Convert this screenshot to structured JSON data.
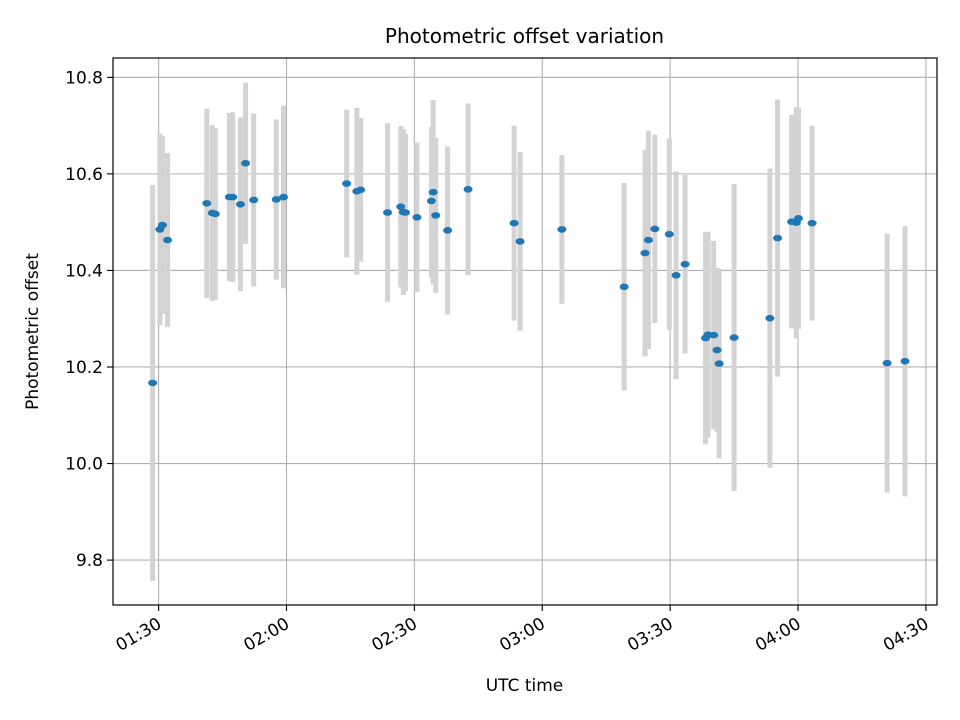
{
  "chart_data": {
    "type": "scatter",
    "title": "Photometric offset variation",
    "xlabel": "UTC time",
    "ylabel": "Photometric offset",
    "x_unit": "minutes",
    "x_ticks": [
      "01:30",
      "02:00",
      "02:30",
      "03:00",
      "03:30",
      "04:00",
      "04:30"
    ],
    "x_tick_values": [
      90,
      120,
      150,
      180,
      210,
      240,
      270
    ],
    "y_ticks": [
      9.8,
      10.0,
      10.2,
      10.4,
      10.6,
      10.8
    ],
    "xlim": [
      79.3,
      272.6
    ],
    "ylim": [
      9.707,
      10.84
    ],
    "grid": true,
    "point_color": "#1f77b4",
    "errorbar_color": "#d3d3d3",
    "points": [
      {
        "x": 88.6,
        "y": 10.167,
        "lo": 9.757,
        "hi": 10.577
      },
      {
        "x": 90.3,
        "y": 10.485,
        "lo": 10.287,
        "hi": 10.683
      },
      {
        "x": 90.9,
        "y": 10.494,
        "lo": 10.31,
        "hi": 10.678
      },
      {
        "x": 92.1,
        "y": 10.463,
        "lo": 10.283,
        "hi": 10.643
      },
      {
        "x": 101.3,
        "y": 10.539,
        "lo": 10.343,
        "hi": 10.735
      },
      {
        "x": 102.6,
        "y": 10.519,
        "lo": 10.337,
        "hi": 10.701
      },
      {
        "x": 103.3,
        "y": 10.517,
        "lo": 10.339,
        "hi": 10.695
      },
      {
        "x": 106.6,
        "y": 10.552,
        "lo": 10.378,
        "hi": 10.726
      },
      {
        "x": 107.4,
        "y": 10.552,
        "lo": 10.376,
        "hi": 10.728
      },
      {
        "x": 109.2,
        "y": 10.537,
        "lo": 10.357,
        "hi": 10.717
      },
      {
        "x": 110.4,
        "y": 10.622,
        "lo": 10.455,
        "hi": 10.789
      },
      {
        "x": 112.3,
        "y": 10.546,
        "lo": 10.367,
        "hi": 10.725
      },
      {
        "x": 117.6,
        "y": 10.547,
        "lo": 10.381,
        "hi": 10.713
      },
      {
        "x": 119.3,
        "y": 10.552,
        "lo": 10.363,
        "hi": 10.741
      },
      {
        "x": 134.1,
        "y": 10.58,
        "lo": 10.427,
        "hi": 10.733
      },
      {
        "x": 136.5,
        "y": 10.564,
        "lo": 10.391,
        "hi": 10.737
      },
      {
        "x": 137.4,
        "y": 10.567,
        "lo": 10.418,
        "hi": 10.716
      },
      {
        "x": 143.7,
        "y": 10.52,
        "lo": 10.335,
        "hi": 10.705
      },
      {
        "x": 146.8,
        "y": 10.532,
        "lo": 10.365,
        "hi": 10.699
      },
      {
        "x": 147.4,
        "y": 10.521,
        "lo": 10.349,
        "hi": 10.693
      },
      {
        "x": 147.9,
        "y": 10.52,
        "lo": 10.357,
        "hi": 10.683
      },
      {
        "x": 150.6,
        "y": 10.51,
        "lo": 10.355,
        "hi": 10.665
      },
      {
        "x": 154.0,
        "y": 10.544,
        "lo": 10.385,
        "hi": 10.697
      },
      {
        "x": 154.4,
        "y": 10.562,
        "lo": 10.371,
        "hi": 10.753
      },
      {
        "x": 155.0,
        "y": 10.514,
        "lo": 10.353,
        "hi": 10.675
      },
      {
        "x": 157.8,
        "y": 10.483,
        "lo": 10.309,
        "hi": 10.657
      },
      {
        "x": 162.6,
        "y": 10.568,
        "lo": 10.39,
        "hi": 10.746
      },
      {
        "x": 173.4,
        "y": 10.498,
        "lo": 10.296,
        "hi": 10.7
      },
      {
        "x": 174.8,
        "y": 10.46,
        "lo": 10.275,
        "hi": 10.645
      },
      {
        "x": 184.6,
        "y": 10.485,
        "lo": 10.331,
        "hi": 10.639
      },
      {
        "x": 199.2,
        "y": 10.366,
        "lo": 10.151,
        "hi": 10.581
      },
      {
        "x": 204.1,
        "y": 10.436,
        "lo": 10.222,
        "hi": 10.65
      },
      {
        "x": 204.9,
        "y": 10.463,
        "lo": 10.237,
        "hi": 10.689
      },
      {
        "x": 206.4,
        "y": 10.486,
        "lo": 10.291,
        "hi": 10.681
      },
      {
        "x": 209.8,
        "y": 10.475,
        "lo": 10.277,
        "hi": 10.673
      },
      {
        "x": 211.4,
        "y": 10.39,
        "lo": 10.175,
        "hi": 10.605
      },
      {
        "x": 213.5,
        "y": 10.413,
        "lo": 10.228,
        "hi": 10.598
      },
      {
        "x": 218.3,
        "y": 10.26,
        "lo": 10.04,
        "hi": 10.48
      },
      {
        "x": 218.9,
        "y": 10.267,
        "lo": 10.054,
        "hi": 10.48
      },
      {
        "x": 220.2,
        "y": 10.266,
        "lo": 10.071,
        "hi": 10.461
      },
      {
        "x": 221.0,
        "y": 10.235,
        "lo": 10.065,
        "hi": 10.405
      },
      {
        "x": 221.5,
        "y": 10.207,
        "lo": 10.011,
        "hi": 10.403
      },
      {
        "x": 225.0,
        "y": 10.261,
        "lo": 9.943,
        "hi": 10.579
      },
      {
        "x": 233.4,
        "y": 10.301,
        "lo": 9.991,
        "hi": 10.611
      },
      {
        "x": 235.2,
        "y": 10.467,
        "lo": 10.18,
        "hi": 10.754
      },
      {
        "x": 238.5,
        "y": 10.501,
        "lo": 10.28,
        "hi": 10.722
      },
      {
        "x": 239.6,
        "y": 10.499,
        "lo": 10.259,
        "hi": 10.739
      },
      {
        "x": 240.1,
        "y": 10.508,
        "lo": 10.279,
        "hi": 10.737
      },
      {
        "x": 243.3,
        "y": 10.498,
        "lo": 10.296,
        "hi": 10.7
      },
      {
        "x": 260.9,
        "y": 10.208,
        "lo": 9.94,
        "hi": 10.476
      },
      {
        "x": 265.1,
        "y": 10.212,
        "lo": 9.932,
        "hi": 10.492
      }
    ]
  }
}
